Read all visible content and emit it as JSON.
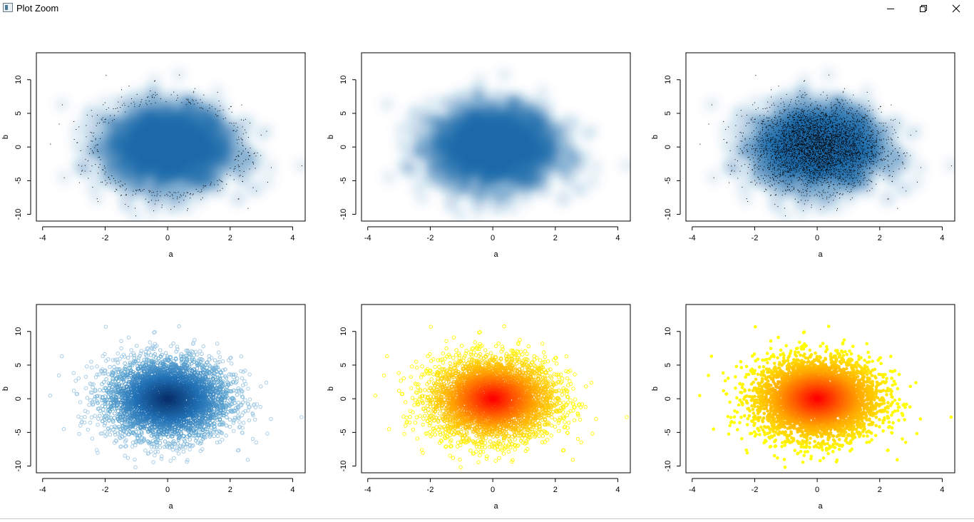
{
  "window": {
    "title": "Plot Zoom",
    "buttons": {
      "minimize": "minimize-icon",
      "maximize": "restore-icon",
      "close": "close-icon"
    }
  },
  "chart_data": [
    {
      "type": "heatmap",
      "title": "",
      "xlabel": "a",
      "ylabel": "b",
      "xlim": [
        -4.2,
        4.4
      ],
      "ylim": [
        -11,
        14
      ],
      "xticks": [
        "-4",
        "-2",
        "0",
        "2",
        "4"
      ],
      "yticks": [
        "-10",
        "-5",
        "0",
        "5",
        "10"
      ],
      "density": "blues",
      "outlier_points": "sparse"
    },
    {
      "type": "heatmap",
      "title": "",
      "xlabel": "a",
      "ylabel": "b",
      "xlim": [
        -4.2,
        4.4
      ],
      "ylim": [
        -11,
        14
      ],
      "xticks": [
        "-4",
        "-2",
        "0",
        "2",
        "4"
      ],
      "yticks": [
        "-10",
        "-5",
        "0",
        "5",
        "10"
      ],
      "density": "blues",
      "outlier_points": "none"
    },
    {
      "type": "heatmap",
      "title": "",
      "xlabel": "a",
      "ylabel": "b",
      "xlim": [
        -4.2,
        4.4
      ],
      "ylim": [
        -11,
        14
      ],
      "xticks": [
        "-4",
        "-2",
        "0",
        "2",
        "4"
      ],
      "yticks": [
        "-10",
        "-5",
        "0",
        "5",
        "10"
      ],
      "density": "blues",
      "outlier_points": "all"
    },
    {
      "type": "scatter",
      "title": "",
      "xlabel": "a",
      "ylabel": "b",
      "xlim": [
        -4.2,
        4.4
      ],
      "ylim": [
        -11,
        14
      ],
      "xticks": [
        "-4",
        "-2",
        "0",
        "2",
        "4"
      ],
      "yticks": [
        "-10",
        "-5",
        "0",
        "5",
        "10"
      ],
      "palette": "blues",
      "marker": "open-circle"
    },
    {
      "type": "scatter",
      "title": "",
      "xlabel": "a",
      "ylabel": "b",
      "xlim": [
        -4.2,
        4.4
      ],
      "ylim": [
        -11,
        14
      ],
      "xticks": [
        "-4",
        "-2",
        "0",
        "2",
        "4"
      ],
      "yticks": [
        "-10",
        "-5",
        "0",
        "5",
        "10"
      ],
      "palette": "heat",
      "marker": "open-circle"
    },
    {
      "type": "scatter",
      "title": "",
      "xlabel": "a",
      "ylabel": "b",
      "xlim": [
        -4.2,
        4.4
      ],
      "ylim": [
        -11,
        14
      ],
      "xticks": [
        "-4",
        "-2",
        "0",
        "2",
        "4"
      ],
      "yticks": [
        "-10",
        "-5",
        "0",
        "5",
        "10"
      ],
      "palette": "heat",
      "marker": "filled-circle"
    }
  ],
  "colors": {
    "blues": [
      "#f7fbff",
      "#c6dbef",
      "#6baed6",
      "#2171b5",
      "#08306b"
    ],
    "heat": [
      "#ffff00",
      "#ffd700",
      "#ffa500",
      "#ff5500",
      "#ff0000"
    ],
    "points": "#000000"
  }
}
